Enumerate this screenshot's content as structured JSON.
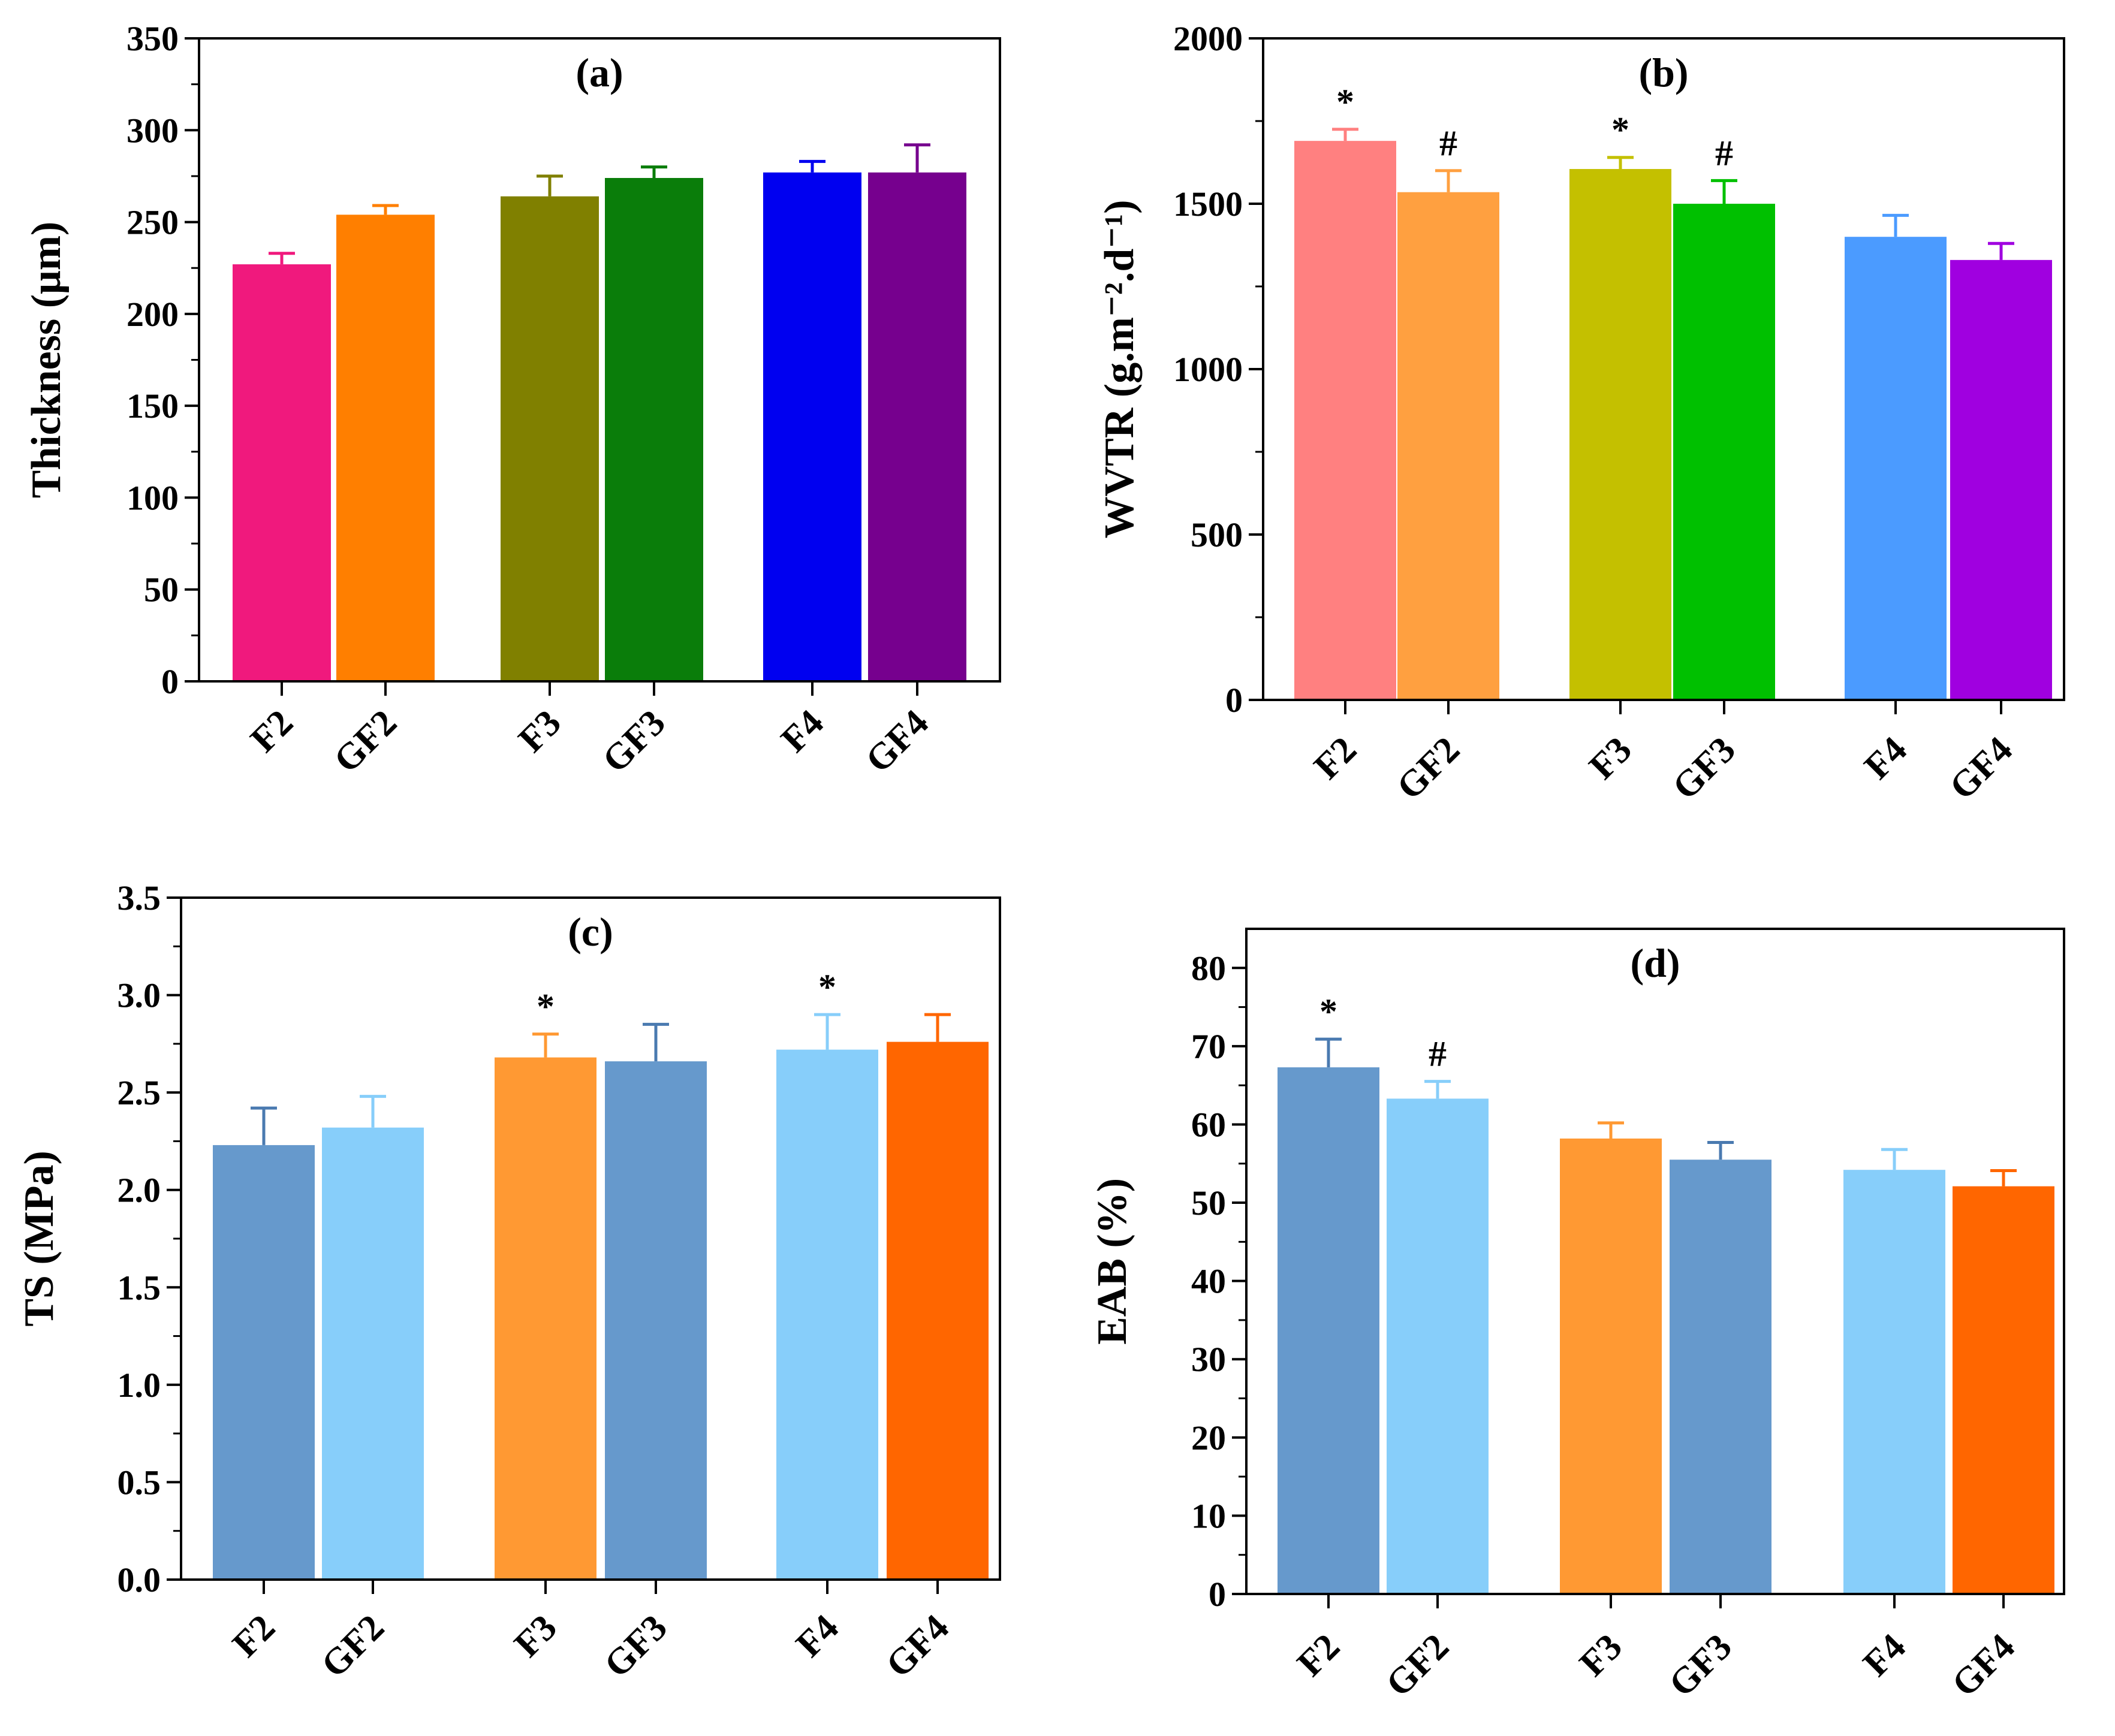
{
  "chart_data": [
    {
      "type": "bar",
      "panel": "a",
      "title": "(a)",
      "xlabel": "",
      "ylabel": "Thickness (μm)",
      "ylim": [
        0,
        350
      ],
      "yticks": [
        "0",
        "50",
        "100",
        "150",
        "200",
        "250",
        "300",
        "350"
      ],
      "ytick_values": [
        0,
        50,
        100,
        150,
        200,
        250,
        300,
        350
      ],
      "categories": [
        "F2",
        "GF2",
        "F3",
        "GF3",
        "F4",
        "GF4"
      ],
      "values": [
        227,
        254,
        264,
        274,
        277,
        277
      ],
      "errors": [
        6,
        5,
        11,
        6,
        6,
        15
      ],
      "colors": [
        "#f0197d",
        "#ff7f00",
        "#808000",
        "#0a7d0a",
        "#0000f0",
        "#76008e"
      ],
      "error_colors": [
        "#f0197d",
        "#ff7f00",
        "#808000",
        "#0a7d0a",
        "#0000f0",
        "#76008e"
      ],
      "significance": [
        "",
        "",
        "",
        "",
        "",
        ""
      ]
    },
    {
      "type": "bar",
      "panel": "b",
      "title": "(b)",
      "xlabel": "",
      "ylabel": "WVTR (g.m⁻².d⁻¹)",
      "ylim": [
        0,
        2000
      ],
      "yticks": [
        "0",
        "500",
        "1000",
        "1500",
        "2000"
      ],
      "ytick_values": [
        0,
        500,
        1000,
        1500,
        2000
      ],
      "categories": [
        "F2",
        "GF2",
        "F3",
        "GF3",
        "F4",
        "GF4"
      ],
      "values": [
        1690,
        1535,
        1605,
        1500,
        1400,
        1330
      ],
      "errors": [
        35,
        65,
        35,
        70,
        65,
        50
      ],
      "colors": [
        "#ff8080",
        "#ffa040",
        "#c4c000",
        "#00c000",
        "#4b9bff",
        "#a000e0"
      ],
      "error_colors": [
        "#ff8080",
        "#ffa040",
        "#c4c000",
        "#00c000",
        "#4b9bff",
        "#a000e0"
      ],
      "significance": [
        "*",
        "#",
        "*",
        "#",
        "",
        ""
      ]
    },
    {
      "type": "bar",
      "panel": "c",
      "title": "(c)",
      "xlabel": "",
      "ylabel": "TS (MPa)",
      "ylim": [
        0,
        3.5
      ],
      "yticks": [
        "0.0",
        "0.5",
        "1.0",
        "1.5",
        "2.0",
        "2.5",
        "3.0",
        "3.5"
      ],
      "ytick_values": [
        0,
        0.5,
        1.0,
        1.5,
        2.0,
        2.5,
        3.0,
        3.5
      ],
      "categories": [
        "F2",
        "GF2",
        "F3",
        "GF3",
        "F4",
        "GF4"
      ],
      "values": [
        2.23,
        2.32,
        2.68,
        2.66,
        2.72,
        2.76
      ],
      "errors": [
        0.19,
        0.16,
        0.12,
        0.19,
        0.18,
        0.14
      ],
      "colors": [
        "#6699cc",
        "#87cefa",
        "#ff9933",
        "#6699cc",
        "#87cefa",
        "#ff6600"
      ],
      "error_colors": [
        "#4a7ab0",
        "#87cefa",
        "#ff9933",
        "#4a7ab0",
        "#87cefa",
        "#ff6600"
      ],
      "significance": [
        "",
        "",
        "*",
        "",
        "*",
        ""
      ]
    },
    {
      "type": "bar",
      "panel": "d",
      "title": "(d)",
      "xlabel": "",
      "ylabel": "EAB (%)",
      "ylim": [
        0,
        85
      ],
      "yticks": [
        "0",
        "10",
        "20",
        "30",
        "40",
        "50",
        "60",
        "70",
        "80"
      ],
      "ytick_values": [
        0,
        10,
        20,
        30,
        40,
        50,
        60,
        70,
        80
      ],
      "categories": [
        "F2",
        "GF2",
        "F3",
        "GF3",
        "F4",
        "GF4"
      ],
      "values": [
        67.3,
        63.3,
        58.2,
        55.5,
        54.2,
        52.1
      ],
      "errors": [
        3.6,
        2.2,
        2.0,
        2.2,
        2.6,
        2.0
      ],
      "colors": [
        "#6699cc",
        "#87cefa",
        "#ff9933",
        "#6699cc",
        "#87cefa",
        "#ff6600"
      ],
      "error_colors": [
        "#4a7ab0",
        "#87cefa",
        "#ff9933",
        "#4a7ab0",
        "#87cefa",
        "#ff6600"
      ],
      "significance": [
        "*",
        "#",
        "",
        "",
        "",
        ""
      ]
    }
  ]
}
